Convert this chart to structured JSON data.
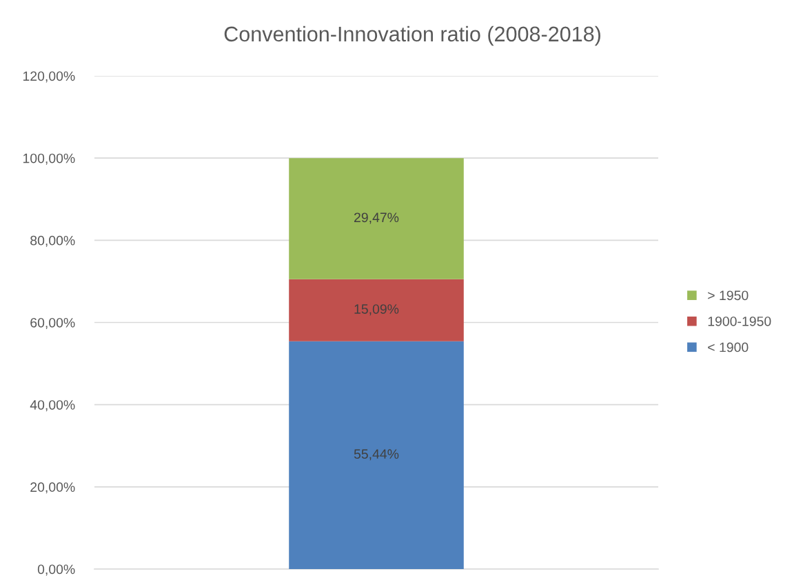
{
  "chart_data": {
    "type": "bar",
    "title": "Convention-Innovation ratio (2008-2018)",
    "categories": [
      null
    ],
    "stacked": true,
    "series": [
      {
        "name": "< 1900",
        "color": "#4f81bd",
        "values": [
          55.44
        ],
        "value_labels": [
          "55,44%"
        ]
      },
      {
        "name": "1900-1950",
        "color": "#c0504d",
        "values": [
          15.09
        ],
        "value_labels": [
          "15,09%"
        ]
      },
      {
        "name": "> 1950",
        "color": "#9bbb59",
        "values": [
          29.47
        ],
        "value_labels": [
          "29,47%"
        ]
      }
    ],
    "ylim": [
      0,
      120
    ],
    "yticks": [
      {
        "value": 0,
        "label": "0,00%"
      },
      {
        "value": 20,
        "label": "20,00%"
      },
      {
        "value": 40,
        "label": "40,00%"
      },
      {
        "value": 60,
        "label": "60,00%"
      },
      {
        "value": 80,
        "label": "80,00%"
      },
      {
        "value": 100,
        "label": "100,00%"
      },
      {
        "value": 120,
        "label": "120,00%"
      }
    ],
    "grid": "y",
    "legend": "right",
    "tick_labels": "y"
  }
}
